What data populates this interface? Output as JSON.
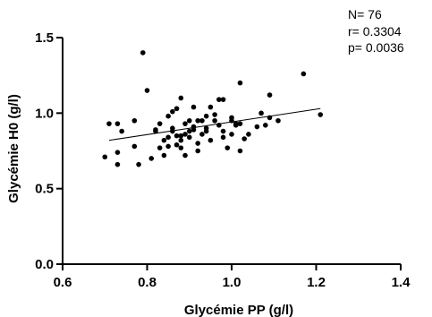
{
  "chart_data": {
    "type": "scatter",
    "title": "",
    "xlabel": "Glycémie PP (g/l)",
    "ylabel": "Glycémie H0 (g/l)",
    "xlim": [
      0.6,
      1.4
    ],
    "ylim": [
      0.0,
      1.5
    ],
    "x_ticks": [
      0.6,
      0.8,
      1.0,
      1.2,
      1.4
    ],
    "x_tick_labels": [
      "0.6",
      "0.8",
      "1.0",
      "1.2",
      "1.4"
    ],
    "y_ticks": [
      0.0,
      0.5,
      1.0,
      1.5
    ],
    "y_tick_labels": [
      "0.0",
      "0.5",
      "1.0",
      "1.5"
    ],
    "grid": false,
    "regression_line": {
      "x": [
        0.71,
        1.21
      ],
      "y": [
        0.82,
        1.03
      ]
    },
    "annotations": [
      "N= 76",
      "r= 0.3304",
      "p= 0.0036"
    ],
    "points": [
      [
        0.7,
        0.71
      ],
      [
        0.71,
        0.93
      ],
      [
        0.73,
        0.66
      ],
      [
        0.73,
        0.74
      ],
      [
        0.73,
        0.93
      ],
      [
        0.74,
        0.88
      ],
      [
        0.77,
        0.95
      ],
      [
        0.77,
        0.78
      ],
      [
        0.78,
        0.66
      ],
      [
        0.79,
        1.4
      ],
      [
        0.8,
        1.15
      ],
      [
        0.81,
        0.7
      ],
      [
        0.82,
        0.89
      ],
      [
        0.82,
        0.88
      ],
      [
        0.83,
        0.77
      ],
      [
        0.84,
        0.72
      ],
      [
        0.84,
        0.82
      ],
      [
        0.85,
        0.78
      ],
      [
        0.85,
        0.84
      ],
      [
        0.85,
        0.98
      ],
      [
        0.86,
        1.01
      ],
      [
        0.86,
        0.88
      ],
      [
        0.86,
        0.9
      ],
      [
        0.87,
        1.03
      ],
      [
        0.87,
        0.85
      ],
      [
        0.87,
        0.79
      ],
      [
        0.88,
        0.77
      ],
      [
        0.88,
        0.85
      ],
      [
        0.88,
        0.82
      ],
      [
        0.88,
        1.1
      ],
      [
        0.89,
        0.93
      ],
      [
        0.89,
        0.86
      ],
      [
        0.89,
        0.72
      ],
      [
        0.9,
        0.84
      ],
      [
        0.9,
        0.88
      ],
      [
        0.9,
        0.95
      ],
      [
        0.91,
        1.04
      ],
      [
        0.91,
        0.89
      ],
      [
        0.92,
        0.8
      ],
      [
        0.92,
        0.75
      ],
      [
        0.92,
        0.95
      ],
      [
        0.93,
        0.95
      ],
      [
        0.93,
        0.86
      ],
      [
        0.94,
        0.9
      ],
      [
        0.94,
        0.98
      ],
      [
        0.95,
        1.04
      ],
      [
        0.95,
        0.82
      ],
      [
        0.96,
        0.95
      ],
      [
        0.96,
        0.99
      ],
      [
        0.97,
        0.92
      ],
      [
        0.97,
        1.09
      ],
      [
        0.98,
        1.09
      ],
      [
        0.98,
        0.88
      ],
      [
        0.98,
        0.84
      ],
      [
        0.99,
        0.77
      ],
      [
        1.0,
        0.97
      ],
      [
        1.0,
        0.95
      ],
      [
        1.0,
        0.86
      ],
      [
        1.01,
        0.92
      ],
      [
        1.01,
        0.93
      ],
      [
        1.02,
        0.93
      ],
      [
        1.02,
        1.2
      ],
      [
        1.02,
        0.75
      ],
      [
        1.03,
        0.83
      ],
      [
        1.04,
        0.86
      ],
      [
        1.06,
        0.91
      ],
      [
        1.07,
        1.0
      ],
      [
        1.08,
        0.92
      ],
      [
        1.09,
        0.97
      ],
      [
        1.09,
        1.12
      ],
      [
        1.11,
        0.95
      ],
      [
        1.17,
        1.26
      ],
      [
        1.21,
        0.99
      ],
      [
        0.91,
        0.91
      ],
      [
        0.94,
        0.88
      ],
      [
        0.83,
        0.93
      ]
    ]
  }
}
